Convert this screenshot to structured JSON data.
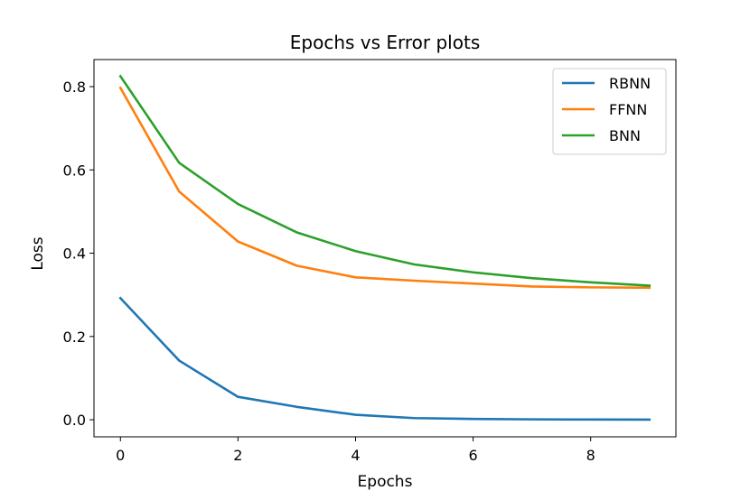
{
  "chart_data": {
    "type": "line",
    "title": "Epochs vs Error plots",
    "xlabel": "Epochs",
    "ylabel": "Loss",
    "xlim": [
      -0.45,
      9.45
    ],
    "ylim": [
      -0.041,
      0.865
    ],
    "xticks": [
      0,
      2,
      4,
      6,
      8
    ],
    "xtick_labels": [
      "0",
      "2",
      "4",
      "6",
      "8"
    ],
    "yticks": [
      0.0,
      0.2,
      0.4,
      0.6,
      0.8
    ],
    "ytick_labels": [
      "0.0",
      "0.2",
      "0.4",
      "0.6",
      "0.8"
    ],
    "grid": false,
    "legend_position": "top-right",
    "x": [
      0,
      1,
      2,
      3,
      4,
      5,
      6,
      7,
      8,
      9
    ],
    "series": [
      {
        "name": "RBNN",
        "color": "#1f77b4",
        "values": [
          0.292,
          0.142,
          0.055,
          0.031,
          0.012,
          0.004,
          0.002,
          0.001,
          0.0005,
          0.0003
        ]
      },
      {
        "name": "FFNN",
        "color": "#ff7f0e",
        "values": [
          0.797,
          0.548,
          0.428,
          0.37,
          0.342,
          0.334,
          0.327,
          0.32,
          0.318,
          0.317
        ]
      },
      {
        "name": "BNN",
        "color": "#2ca02c",
        "values": [
          0.825,
          0.617,
          0.518,
          0.45,
          0.405,
          0.373,
          0.354,
          0.34,
          0.33,
          0.322
        ]
      }
    ]
  }
}
